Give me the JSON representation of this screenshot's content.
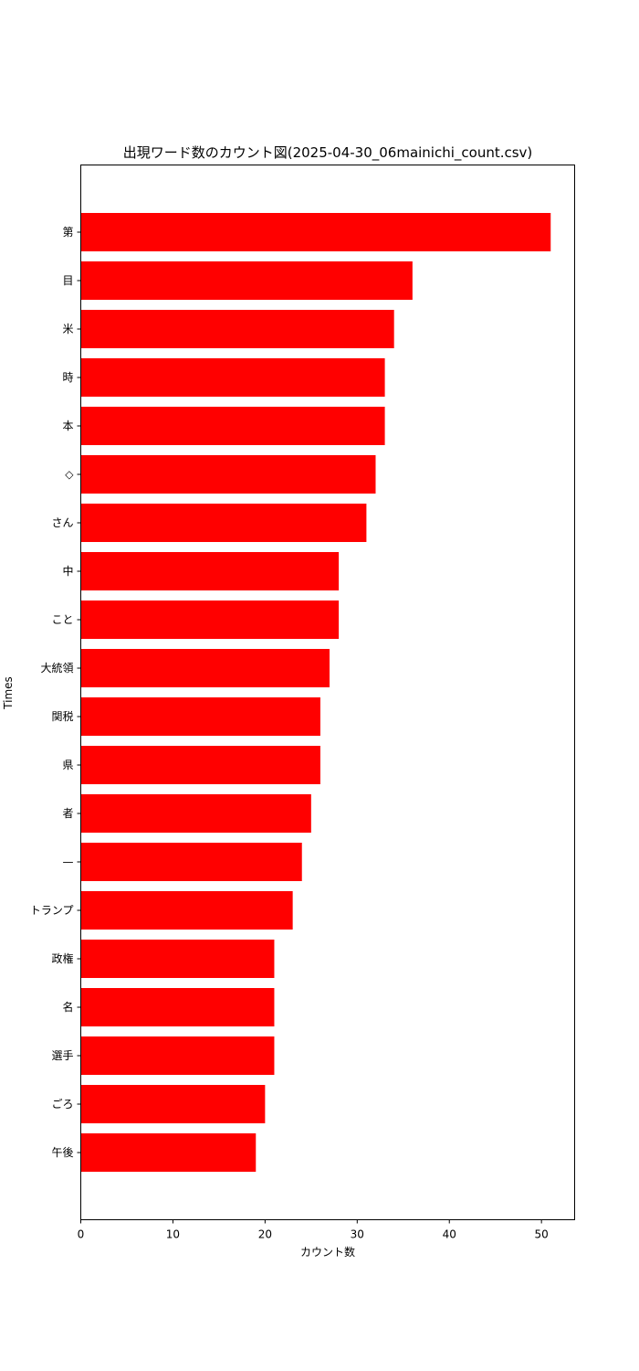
{
  "chart_data": {
    "type": "bar",
    "orientation": "horizontal",
    "title": "出現ワード数のカウント図(2025-04-30_06mainichi_count.csv)",
    "xlabel": "カウント数",
    "ylabel": "Times",
    "xlim": [
      0,
      53.6
    ],
    "x_ticks": [
      0,
      10,
      20,
      30,
      40,
      50
    ],
    "grid": false,
    "bar_color": "#ff0000",
    "categories": [
      "第",
      "目",
      "米",
      "時",
      "本",
      "◇",
      "さん",
      "中",
      "こと",
      "大統領",
      "関税",
      "県",
      "者",
      "—",
      "トランプ",
      "政権",
      "名",
      "選手",
      "ごろ",
      "午後"
    ],
    "values": [
      51,
      36,
      34,
      33,
      33,
      32,
      31,
      28,
      28,
      27,
      26,
      26,
      25,
      24,
      23,
      21,
      21,
      21,
      20,
      19
    ]
  }
}
